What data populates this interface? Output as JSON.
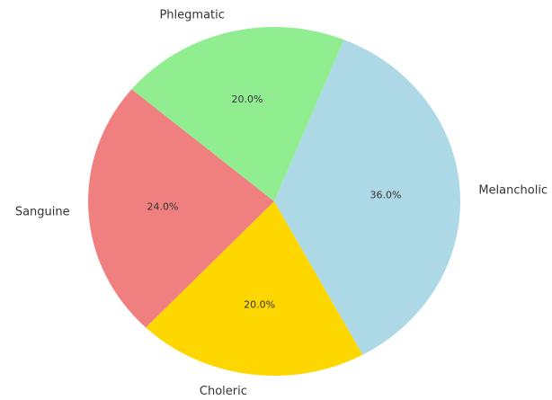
{
  "chart_data": {
    "type": "pie",
    "categories": [
      "Sanguine",
      "Choleric",
      "Melancholic",
      "Phlegmatic"
    ],
    "values": [
      24,
      20,
      36,
      20
    ],
    "value_labels": [
      "24.0%",
      "20.0%",
      "36.0%",
      "20.0%"
    ],
    "colors": [
      "#f08080",
      "#ffd700",
      "#add8e6",
      "#90ee90"
    ]
  }
}
